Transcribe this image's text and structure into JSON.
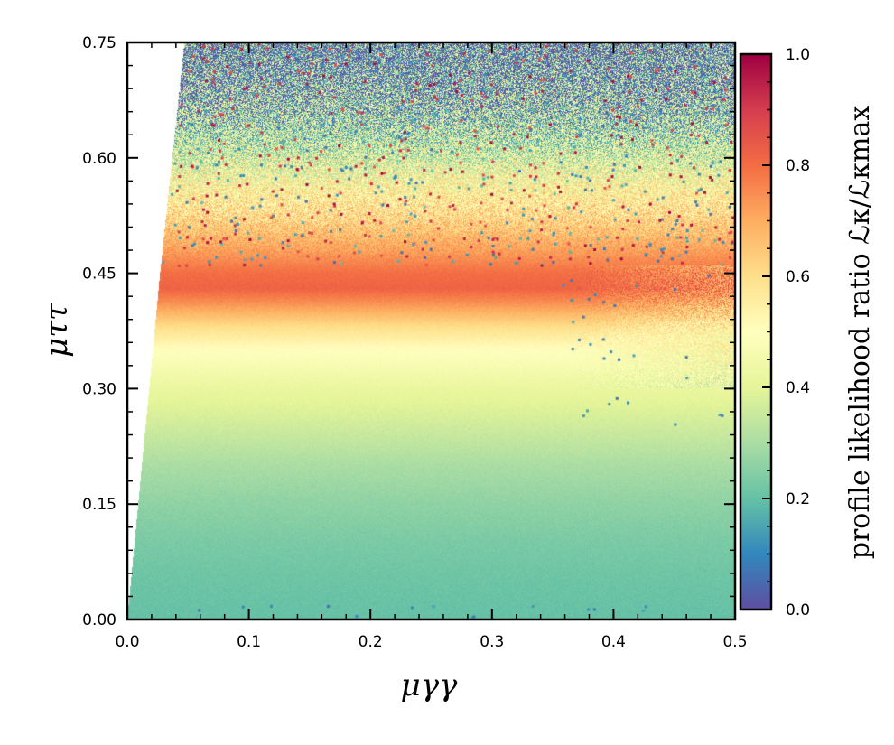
{
  "chart_data": {
    "type": "heatmap",
    "title": "",
    "xlabel": "μγγ",
    "ylabel": "μττ",
    "xlim": [
      0.0,
      0.5
    ],
    "ylim": [
      0.0,
      0.75
    ],
    "x_ticks": [
      "0.0",
      "0.1",
      "0.2",
      "0.3",
      "0.4",
      "0.5"
    ],
    "y_ticks": [
      "0.00",
      "0.15",
      "0.30",
      "0.45",
      "0.60",
      "0.75"
    ],
    "colorbar": {
      "label": "profile likelihood ratio ℒκ/ℒκmax",
      "range": [
        0.0,
        1.0
      ],
      "ticks": [
        "0.0",
        "0.2",
        "0.4",
        "0.6",
        "0.8",
        "1.0"
      ],
      "colormap": "Spectral_r"
    },
    "profile_vs_mu_tautau": {
      "mu_tautau": [
        0.0,
        0.05,
        0.1,
        0.15,
        0.2,
        0.25,
        0.3,
        0.35,
        0.38,
        0.41,
        0.43,
        0.45,
        0.48,
        0.52,
        0.56,
        0.6,
        0.65,
        0.7,
        0.75
      ],
      "ratio": [
        0.2,
        0.21,
        0.23,
        0.26,
        0.3,
        0.36,
        0.42,
        0.5,
        0.6,
        0.74,
        0.82,
        0.8,
        0.72,
        0.62,
        0.52,
        0.4,
        0.28,
        0.18,
        0.12
      ]
    },
    "region_boundary": {
      "description": "lower-left edge of sampled region",
      "points": [
        [
          0.0,
          0.0
        ],
        [
          0.027,
          0.45
        ],
        [
          0.047,
          0.75
        ]
      ]
    }
  }
}
